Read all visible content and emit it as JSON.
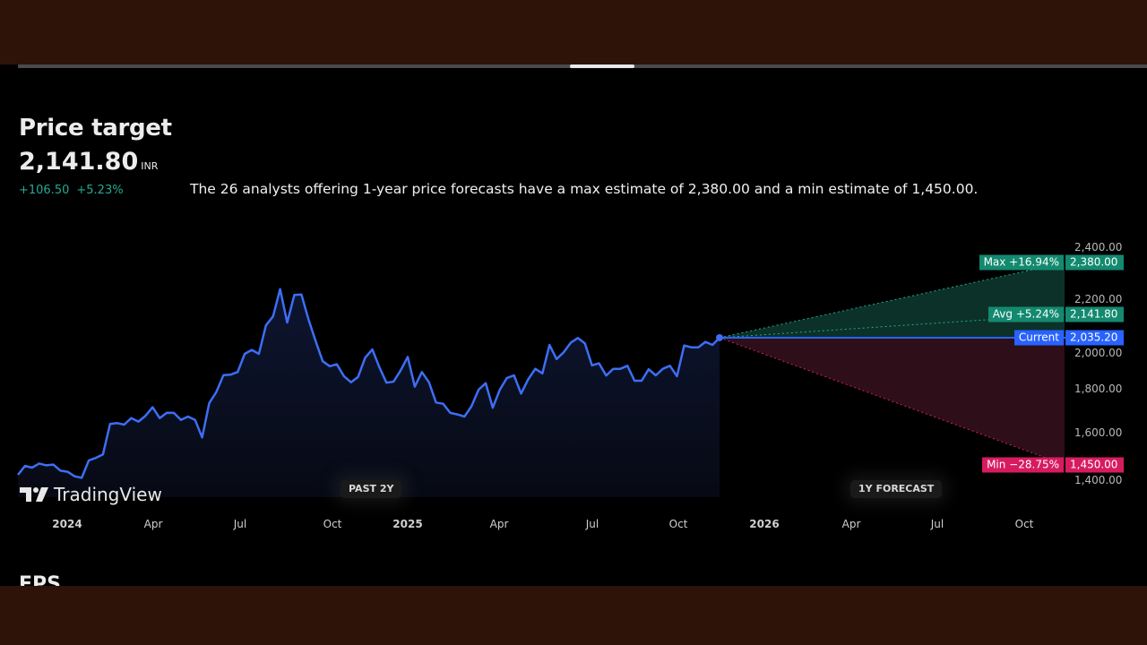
{
  "header": {
    "title": "Price target",
    "price": "2,141.80",
    "currency": "INR",
    "change_abs": "+106.50",
    "change_pct": "+5.23%",
    "description": "The 26 analysts offering 1-year price forecasts have a max estimate of 2,380.00 and a min estimate of 1,450.00."
  },
  "next_section": {
    "title": "EPS"
  },
  "branding": {
    "logo_text": "TradingView"
  },
  "colors": {
    "line": "#3d6ef5",
    "max_avg": "#138a6f",
    "min": "#d81b60",
    "current": "#2962ff",
    "up_text": "#22ab94",
    "frame": "#2d1308"
  },
  "chart_data": {
    "type": "line",
    "period_labels": [
      "PAST 2Y",
      "1Y FORECAST"
    ],
    "x_ticks": [
      "2024",
      "Apr",
      "Jul",
      "Oct",
      "2025",
      "Apr",
      "Jul",
      "Oct",
      "2026",
      "Apr",
      "Jul",
      "Oct"
    ],
    "y_ticks": [
      "2,400.00",
      "2,200.00",
      "2,000.00",
      "1,800.00",
      "1,600.00",
      "1,400.00"
    ],
    "ylim": [
      1400,
      2400
    ],
    "series": [
      {
        "values": [
          1404,
          1445,
          1437,
          1456,
          1448,
          1451,
          1423,
          1418,
          1397,
          1390,
          1470,
          1482,
          1498,
          1638,
          1642,
          1635,
          1665,
          1649,
          1676,
          1715,
          1665,
          1690,
          1689,
          1657,
          1672,
          1657,
          1576,
          1734,
          1786,
          1863,
          1865,
          1877,
          1961,
          1979,
          1961,
          2092,
          2133,
          2259,
          2105,
          2232,
          2234,
          2119,
          2020,
          1927,
          1904,
          1913,
          1858,
          1830,
          1855,
          1943,
          1981,
          1899,
          1828,
          1833,
          1885,
          1947,
          1810,
          1877,
          1830,
          1737,
          1731,
          1689,
          1682,
          1672,
          1720,
          1796,
          1826,
          1713,
          1796,
          1850,
          1862,
          1778,
          1844,
          1892,
          1871,
          2002,
          1937,
          1968,
          2012,
          2034,
          2009,
          1908,
          1917,
          1861,
          1892,
          1892,
          1906,
          1837,
          1837,
          1890,
          1862,
          1892,
          1906,
          1858,
          1999,
          1991,
          1991,
          2016,
          2002,
          2035
        ]
      }
    ],
    "forecast": {
      "current": {
        "label": "Current",
        "value": 2035.2,
        "value_text": "2,035.20"
      },
      "max": {
        "label": "Max +16.94%",
        "value": 2380.0,
        "value_text": "2,380.00"
      },
      "avg": {
        "label": "Avg +5.24%",
        "value": 2141.8,
        "value_text": "2,141.80"
      },
      "min": {
        "label": "Min −28.75%",
        "value": 1450.0,
        "value_text": "1,450.00"
      }
    }
  }
}
